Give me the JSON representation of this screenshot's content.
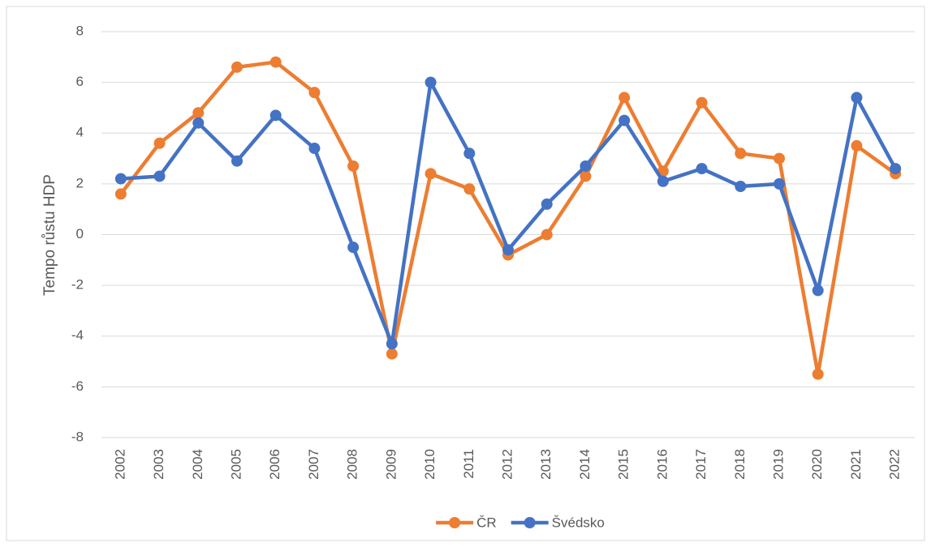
{
  "chart_data": {
    "type": "line",
    "ylabel": "Tempo růstu HDP",
    "categories": [
      "2002",
      "2003",
      "2004",
      "2005",
      "2006",
      "2007",
      "2008",
      "2009",
      "2010",
      "2011",
      "2012",
      "2013",
      "2014",
      "2015",
      "2016",
      "2017",
      "2018",
      "2019",
      "2020",
      "2021",
      "2022"
    ],
    "series": [
      {
        "name": "ČR",
        "color": "#ED7D31",
        "values": [
          1.6,
          3.6,
          4.8,
          6.6,
          6.8,
          5.6,
          2.7,
          -4.7,
          2.4,
          1.8,
          -0.8,
          0.0,
          2.3,
          5.4,
          2.5,
          5.2,
          3.2,
          3.0,
          -5.5,
          3.5,
          2.4
        ]
      },
      {
        "name": "Švédsko",
        "color": "#4472C4",
        "values": [
          2.2,
          2.3,
          4.4,
          2.9,
          4.7,
          3.4,
          -0.5,
          -4.3,
          6.0,
          3.2,
          -0.6,
          1.2,
          2.7,
          4.5,
          2.1,
          2.6,
          1.9,
          2.0,
          -2.2,
          5.4,
          2.6
        ]
      }
    ],
    "ylim": [
      -8,
      8
    ],
    "yticks": [
      -8,
      -6,
      -4,
      -2,
      0,
      2,
      4,
      6,
      8
    ],
    "grid": true,
    "legend": "bottom"
  }
}
